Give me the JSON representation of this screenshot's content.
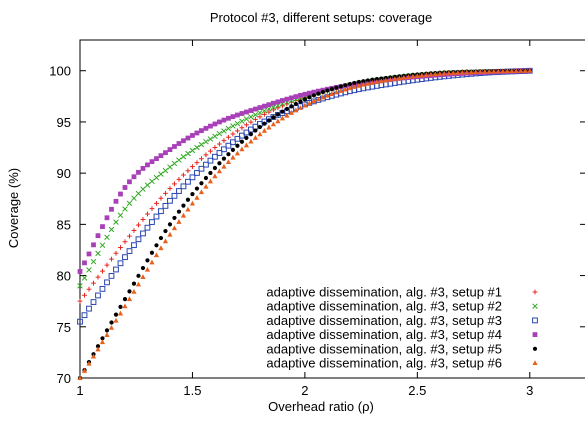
{
  "chart_data": {
    "type": "scatter",
    "title": "Protocol #3, different setups: coverage",
    "xlabel": "Overhead ratio (ρ)",
    "ylabel": "Coverage (%)",
    "xlim": [
      1,
      3.25
    ],
    "ylim": [
      70,
      103
    ],
    "xticks": [
      "1",
      "1.5",
      "2",
      "2.5",
      "3"
    ],
    "yticks": [
      "70",
      "75",
      "80",
      "85",
      "90",
      "95",
      "100"
    ],
    "legend_position": "bottom-right",
    "grid": false,
    "series": [
      {
        "name": "adaptive dissemination, alg. #3, setup #1",
        "color": "#e8251f",
        "marker": "plus",
        "x": [
          1.0,
          1.2,
          1.4,
          1.6,
          1.8,
          2.0,
          2.2,
          2.4,
          2.6,
          2.8,
          3.0
        ],
        "y": [
          77.5,
          83.3,
          88.5,
          92.5,
          95.5,
          97.4,
          98.5,
          99.2,
          99.6,
          99.85,
          100.0
        ]
      },
      {
        "name": "adaptive dissemination, alg. #3, setup #2",
        "color": "#32a824",
        "marker": "cross",
        "x": [
          1.0,
          1.2,
          1.4,
          1.6,
          1.8,
          2.0,
          2.2,
          2.4,
          2.6,
          2.8,
          3.0
        ],
        "y": [
          79.0,
          86.5,
          90.6,
          93.6,
          95.9,
          97.5,
          98.6,
          99.3,
          99.7,
          99.9,
          100.0
        ]
      },
      {
        "name": "adaptive dissemination, alg. #3, setup #3",
        "color": "#2a46b3",
        "marker": "square",
        "x": [
          1.0,
          1.2,
          1.4,
          1.6,
          1.8,
          2.0,
          2.2,
          2.4,
          2.6,
          2.8,
          3.0
        ],
        "y": [
          75.5,
          81.8,
          87.3,
          91.6,
          94.8,
          96.7,
          98.0,
          98.8,
          99.4,
          99.8,
          100.0
        ]
      },
      {
        "name": "adaptive dissemination, alg. #3, setup #4",
        "color": "#a840b8",
        "marker": "filled-square",
        "x": [
          1.0,
          1.2,
          1.4,
          1.6,
          1.8,
          2.0,
          2.2,
          2.4,
          2.6,
          2.8,
          3.0
        ],
        "y": [
          80.4,
          88.6,
          92.3,
          94.8,
          96.4,
          97.7,
          98.6,
          99.2,
          99.6,
          99.85,
          100.0
        ]
      },
      {
        "name": "adaptive dissemination, alg. #3, setup #5",
        "color": "#000000",
        "marker": "dot",
        "x": [
          1.0,
          1.2,
          1.4,
          1.6,
          1.8,
          2.0,
          2.2,
          2.4,
          2.6,
          2.8,
          3.0
        ],
        "y": [
          70.0,
          77.7,
          85.0,
          90.5,
          94.5,
          97.2,
          98.7,
          99.4,
          99.8,
          99.95,
          100.0
        ]
      },
      {
        "name": "adaptive dissemination, alg. #3, setup #6",
        "color": "#e8601c",
        "marker": "triangle",
        "x": [
          1.0,
          1.2,
          1.4,
          1.6,
          1.8,
          2.0,
          2.2,
          2.4,
          2.6,
          2.8,
          3.0
        ],
        "y": [
          70.0,
          77.0,
          84.0,
          89.7,
          93.8,
          96.6,
          98.3,
          99.2,
          99.7,
          99.9,
          100.0
        ]
      }
    ]
  }
}
